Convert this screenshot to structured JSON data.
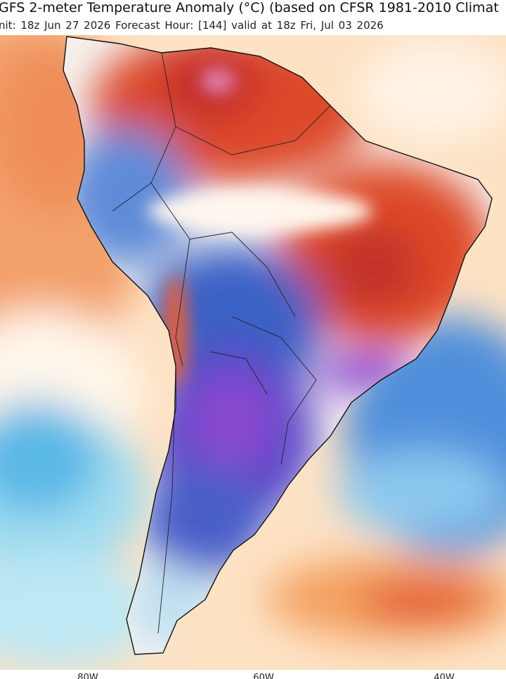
{
  "header": {
    "title": "GFS 2-meter Temperature Anomaly (°C) (based on CFSR 1981-2010 Climat",
    "subtitle": "nit: 18z Jun 27 2026   Forecast Hour: [144]   valid at 18z Fri, Jul 03 2026"
  },
  "map": {
    "lon_labels": [
      "80W",
      "60W",
      "40W"
    ]
  }
}
